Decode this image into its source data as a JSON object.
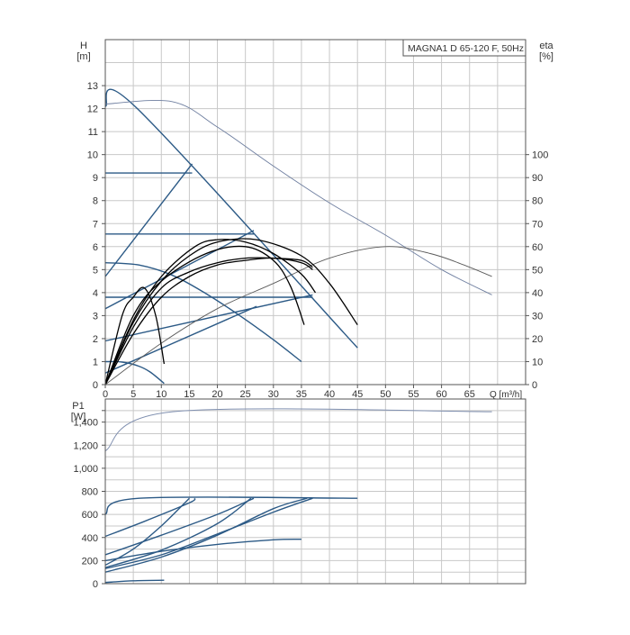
{
  "chart_data": [
    {
      "type": "line",
      "title": "MAGNA1 D 65-120 F, 50Hz",
      "xlabel": "Q [m³/h]",
      "ylabel_left": [
        "H",
        "[m]"
      ],
      "ylabel_right": [
        "eta",
        "[%]"
      ],
      "x_ticks": [
        "0",
        "5",
        "10",
        "15",
        "20",
        "25",
        "30",
        "35",
        "40",
        "45",
        "50",
        "55",
        "60",
        "65"
      ],
      "y_ticks_left": [
        "0",
        "1",
        "2",
        "3",
        "4",
        "5",
        "6",
        "7",
        "8",
        "9",
        "10",
        "11",
        "12",
        "13"
      ],
      "y_ticks_right": [
        "0",
        "10",
        "20",
        "30",
        "40",
        "50",
        "60",
        "70",
        "80",
        "90",
        "100"
      ],
      "xlim": [
        0,
        75
      ],
      "ylim_left": [
        0,
        15
      ],
      "ylim_right": [
        0,
        150
      ],
      "grid": true,
      "series": [
        {
          "group": "head",
          "color": "#2c5a86",
          "x": [
            0,
            5.5,
            45
          ],
          "y": [
            12.1,
            12.05,
            1.6
          ]
        },
        {
          "group": "head",
          "color": "#2c5a86",
          "x": [
            0,
            15.5
          ],
          "y": [
            9.2,
            9.2
          ]
        },
        {
          "group": "head",
          "color": "#2c5a86",
          "x": [
            0,
            26.5
          ],
          "y": [
            6.55,
            6.55
          ]
        },
        {
          "group": "head",
          "color": "#2c5a86",
          "x": [
            0,
            37
          ],
          "y": [
            3.8,
            3.8
          ]
        },
        {
          "group": "head",
          "color": "#2c5a86",
          "x": [
            0,
            15.5
          ],
          "y": [
            4.7,
            9.6
          ]
        },
        {
          "group": "head",
          "color": "#2c5a86",
          "x": [
            0,
            26.5
          ],
          "y": [
            3.3,
            6.7
          ]
        },
        {
          "group": "head",
          "color": "#2c5a86",
          "x": [
            0,
            37
          ],
          "y": [
            1.9,
            3.9
          ]
        },
        {
          "group": "head",
          "color": "#2c5a86",
          "x": [
            0,
            27
          ],
          "y": [
            0.5,
            3.4
          ]
        },
        {
          "group": "head",
          "color": "#2c5a86",
          "x": [
            0,
            6,
            12,
            18,
            24,
            30,
            35
          ],
          "y": [
            5.3,
            5.2,
            4.75,
            3.95,
            3.0,
            1.95,
            1.0
          ]
        },
        {
          "group": "head",
          "color": "#2c5a86",
          "x": [
            0,
            3,
            6,
            8,
            10.5
          ],
          "y": [
            1.0,
            0.98,
            0.8,
            0.55,
            0.05
          ]
        },
        {
          "group": "head",
          "color": "#6f7fa0",
          "x": [
            0,
            12,
            20,
            30,
            40,
            50,
            60,
            69
          ],
          "y": [
            12.2,
            12.3,
            11.2,
            9.5,
            7.9,
            6.5,
            5.0,
            3.9
          ]
        },
        {
          "group": "eta",
          "color": "#5a5a5a",
          "x": [
            0,
            10,
            20,
            30,
            40,
            50,
            58,
            64,
            69
          ],
          "y": [
            0,
            18,
            33,
            44,
            55,
            60,
            57,
            52,
            47
          ]
        },
        {
          "group": "eta",
          "color": "#000000",
          "x": [
            0,
            3,
            5,
            7,
            9,
            10.5
          ],
          "y": [
            0,
            30,
            38,
            42,
            30,
            9
          ]
        },
        {
          "group": "eta",
          "color": "#000000",
          "x": [
            0,
            5,
            10,
            18,
            25,
            30,
            33,
            35.5
          ],
          "y": [
            0,
            30,
            45,
            57,
            60,
            54,
            43,
            26
          ]
        },
        {
          "group": "eta",
          "color": "#000000",
          "x": [
            0,
            5,
            10,
            16,
            20,
            25,
            30,
            35,
            37.5
          ],
          "y": [
            0,
            28,
            47,
            60,
            63,
            62,
            57,
            48,
            40
          ]
        },
        {
          "group": "eta",
          "color": "#000000",
          "x": [
            0,
            5,
            10,
            15,
            20,
            27,
            35,
            40,
            45
          ],
          "y": [
            0,
            27,
            45,
            56,
            62,
            63,
            56,
            44,
            26
          ]
        },
        {
          "group": "eta",
          "color": "#000000",
          "x": [
            0,
            5,
            10,
            15,
            20,
            25,
            30,
            35,
            37
          ],
          "y": [
            0,
            25,
            42,
            49,
            53,
            55,
            55,
            54,
            51
          ]
        },
        {
          "group": "eta",
          "color": "#000000",
          "x": [
            0,
            5,
            10,
            15,
            20,
            25,
            30,
            35,
            37
          ],
          "y": [
            0,
            22,
            38,
            47,
            52,
            54,
            55,
            53,
            50
          ]
        }
      ]
    },
    {
      "type": "line",
      "ylabel": [
        "P1",
        "[W]"
      ],
      "y_ticks": [
        "0",
        "200",
        "400",
        "600",
        "800",
        "1,000",
        "1,200",
        "1,400"
      ],
      "xlim": [
        0,
        75
      ],
      "ylim": [
        0,
        1600
      ],
      "grid": true,
      "series": [
        {
          "color": "#8090b0",
          "x": [
            0,
            12,
            69
          ],
          "y": [
            1150,
            1490,
            1490
          ]
        },
        {
          "color": "#2c5a86",
          "x": [
            0,
            6,
            45
          ],
          "y": [
            600,
            740,
            740
          ]
        },
        {
          "color": "#2c5a86",
          "x": [
            0,
            7,
            15,
            16
          ],
          "y": [
            410,
            540,
            700,
            740
          ]
        },
        {
          "color": "#2c5a86",
          "x": [
            0,
            10,
            20,
            26.5
          ],
          "y": [
            250,
            420,
            600,
            740
          ]
        },
        {
          "color": "#2c5a86",
          "x": [
            0,
            10,
            20,
            30,
            37
          ],
          "y": [
            130,
            250,
            430,
            620,
            740
          ]
        },
        {
          "color": "#2c5a86",
          "x": [
            0,
            5,
            10,
            15
          ],
          "y": [
            160,
            300,
            500,
            740
          ]
        },
        {
          "color": "#2c5a86",
          "x": [
            0,
            10,
            20,
            26
          ],
          "y": [
            140,
            290,
            520,
            740
          ]
        },
        {
          "color": "#2c5a86",
          "x": [
            0,
            10,
            20,
            30,
            36
          ],
          "y": [
            100,
            230,
            420,
            650,
            740
          ]
        },
        {
          "color": "#2c5a86",
          "x": [
            0,
            10,
            20,
            30,
            35
          ],
          "y": [
            200,
            280,
            340,
            380,
            385
          ]
        },
        {
          "color": "#2c5a86",
          "x": [
            0,
            5,
            10.5
          ],
          "y": [
            10,
            25,
            30
          ]
        }
      ]
    }
  ]
}
